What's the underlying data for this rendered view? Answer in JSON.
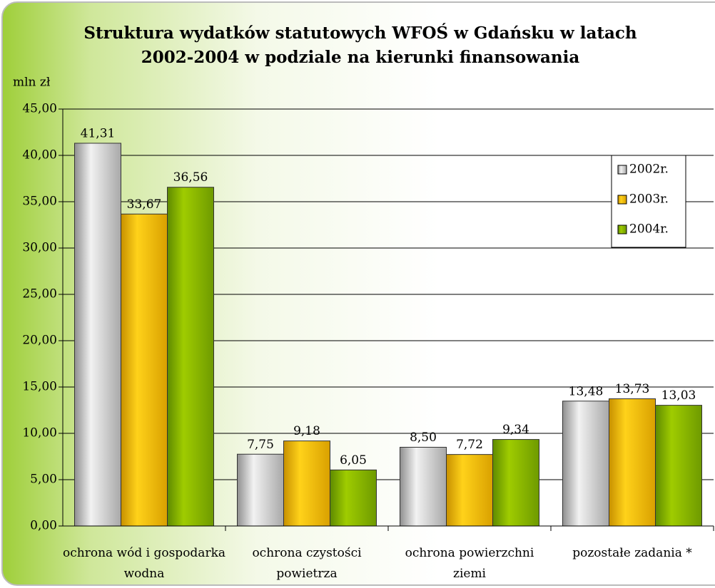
{
  "chart_data": {
    "type": "bar",
    "title": "Struktura wydatków statutowych WFOŚ w Gdańsku w latach 2002-2004 w podziale na kierunki finansowania",
    "ylabel": "mln zł",
    "categories": [
      "ochrona wód i gospodarka wodna",
      "ochrona czystości powietrza",
      "ochrona powierzchni ziemi",
      "pozostałe zadania *"
    ],
    "series": [
      {
        "name": "2002r.",
        "color": "#c8c8c8",
        "values": [
          41.31,
          7.75,
          8.5,
          13.48
        ],
        "value_labels": [
          "41,31",
          "7,75",
          "8,50",
          "13,48"
        ]
      },
      {
        "name": "2003r.",
        "color": "#ffc000",
        "values": [
          33.67,
          9.18,
          7.72,
          13.73
        ],
        "value_labels": [
          "33,67",
          "9,18",
          "7,72",
          "13,73"
        ]
      },
      {
        "name": "2004r.",
        "color": "#8cb800",
        "values": [
          36.56,
          6.05,
          9.34,
          13.03
        ],
        "value_labels": [
          "36,56",
          "6,05",
          "9,34",
          "13,03"
        ]
      }
    ],
    "ylim": [
      0,
      45
    ],
    "yticks": [
      {
        "value": 0,
        "label": "0,00"
      },
      {
        "value": 5,
        "label": "5,00"
      },
      {
        "value": 10,
        "label": "10,00"
      },
      {
        "value": 15,
        "label": "15,00"
      },
      {
        "value": 20,
        "label": "20,00"
      },
      {
        "value": 25,
        "label": "25,00"
      },
      {
        "value": 30,
        "label": "30,00"
      },
      {
        "value": 35,
        "label": "35,00"
      },
      {
        "value": 40,
        "label": "40,00"
      },
      {
        "value": 45,
        "label": "45,00"
      }
    ],
    "grid": true,
    "legend": "upper right"
  }
}
